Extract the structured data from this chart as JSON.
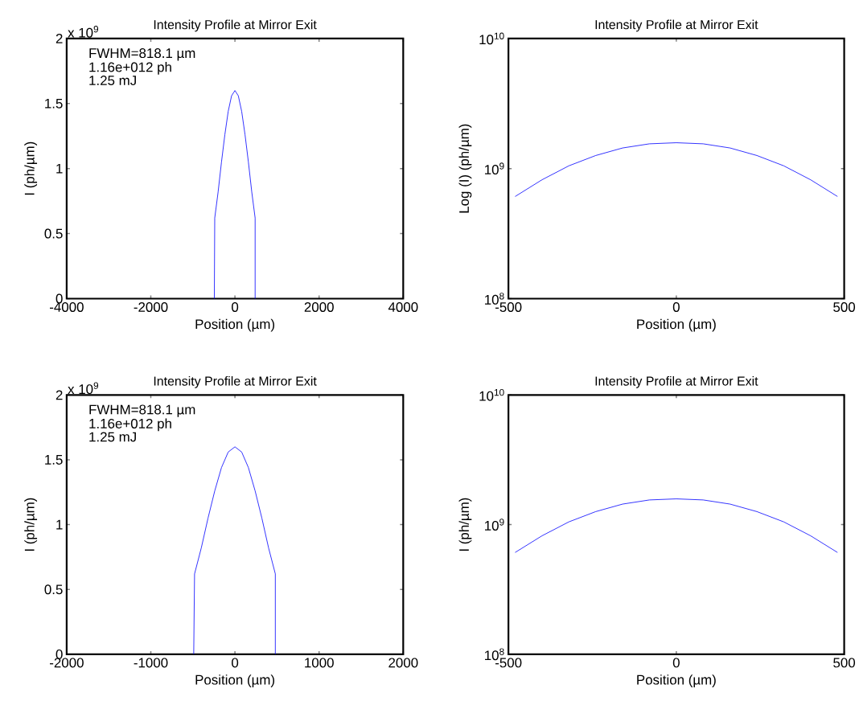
{
  "chart_data": [
    {
      "type": "line",
      "title": "Intensity Profile at Mirror Exit",
      "xlabel": "Position (µm)",
      "ylabel": "I (ph/µm)",
      "annotations": [
        "x 10$^{9}$",
        "FWHM=818.1 µm",
        "1.16e+012 ph",
        "1.25 mJ"
      ],
      "x": [
        -490,
        -480,
        -400,
        -320,
        -240,
        -160,
        -80,
        0,
        80,
        160,
        240,
        320,
        400,
        480,
        480
      ],
      "series": [
        {
          "color": "#0000ff",
          "values": [
            0,
            0.62,
            0.82,
            1.05,
            1.26,
            1.44,
            1.56,
            1.6,
            1.56,
            1.44,
            1.26,
            1.05,
            0.82,
            0.62,
            0
          ]
        }
      ],
      "xlim": [
        -4000,
        4000
      ],
      "ylim": [
        0,
        2
      ],
      "xticks": [
        -4000,
        -2000,
        0,
        2000,
        4000
      ],
      "yticks": [
        0,
        0.5,
        1,
        1.5,
        2
      ]
    },
    {
      "type": "line",
      "title": "Intensity Profile at Mirror Exit",
      "xlabel": "Position (µm)",
      "ylabel": "Log (I) (ph/µm)",
      "log": "y",
      "x": [
        -480,
        -400,
        -320,
        -240,
        -160,
        -80,
        0,
        80,
        160,
        240,
        320,
        400,
        480
      ],
      "series": [
        {
          "color": "#0000ff",
          "values": [
            610000000,
            820000000,
            1050000000,
            1260000000,
            1440000000,
            1550000000,
            1580000000,
            1550000000,
            1440000000,
            1260000000,
            1050000000,
            820000000,
            610000000
          ]
        }
      ],
      "xlim": [
        -500,
        500
      ],
      "ylim": [
        100000000,
        10000000000
      ],
      "xticks": [
        -500,
        0,
        500
      ],
      "yticks": [
        {
          "value": 100000000,
          "label": "10$^{8}$"
        },
        {
          "value": 1000000000,
          "label": "10$^{9}$"
        },
        {
          "value": 10000000000,
          "label": "10$^{10}$"
        }
      ]
    },
    {
      "type": "line",
      "title": "Intensity Profile at Mirror Exit",
      "xlabel": "Position (µm)",
      "ylabel": "I (ph/µm)",
      "annotations": [
        "x 10$^{9}$",
        "FWHM=818.1 µm",
        "1.16e+012 ph",
        "1.25 mJ"
      ],
      "x": [
        -490,
        -480,
        -400,
        -320,
        -240,
        -160,
        -80,
        0,
        80,
        160,
        240,
        320,
        400,
        480,
        480
      ],
      "series": [
        {
          "color": "#0000ff",
          "values": [
            0,
            0.62,
            0.82,
            1.05,
            1.26,
            1.44,
            1.56,
            1.6,
            1.56,
            1.44,
            1.26,
            1.05,
            0.82,
            0.62,
            0
          ]
        }
      ],
      "xlim": [
        -2000,
        2000
      ],
      "ylim": [
        0,
        2
      ],
      "xticks": [
        -2000,
        -1000,
        0,
        1000,
        2000
      ],
      "yticks": [
        0,
        0.5,
        1,
        1.5,
        2
      ]
    },
    {
      "type": "line",
      "title": "Intensity Profile at Mirror Exit",
      "xlabel": "Position (µm)",
      "ylabel": "I (ph/µm)",
      "log": "y",
      "x": [
        -480,
        -400,
        -320,
        -240,
        -160,
        -80,
        0,
        80,
        160,
        240,
        320,
        400,
        480
      ],
      "series": [
        {
          "color": "#0000ff",
          "values": [
            610000000,
            820000000,
            1050000000,
            1260000000,
            1440000000,
            1550000000,
            1580000000,
            1550000000,
            1440000000,
            1260000000,
            1050000000,
            820000000,
            610000000
          ]
        }
      ],
      "xlim": [
        -500,
        500
      ],
      "ylim": [
        100000000,
        10000000000
      ],
      "xticks": [
        -500,
        0,
        500
      ],
      "yticks": [
        {
          "value": 100000000,
          "label": "10$^{8}$"
        },
        {
          "value": 1000000000,
          "label": "10$^{9}$"
        },
        {
          "value": 10000000000,
          "label": "10$^{10}$"
        }
      ]
    }
  ]
}
